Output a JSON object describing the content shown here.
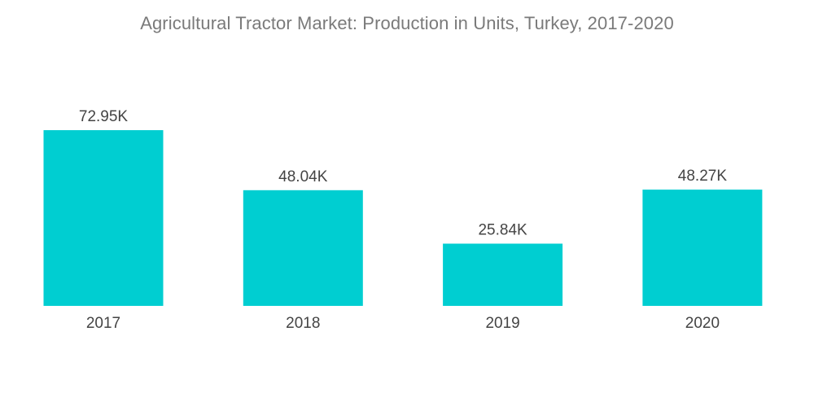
{
  "chart_data": {
    "type": "bar",
    "title": "Agricultural Tractor Market: Production in Units, Turkey, 2017-2020",
    "categories": [
      "2017",
      "2018",
      "2019",
      "2020"
    ],
    "values": [
      72.95,
      48.04,
      25.84,
      48.27
    ],
    "value_labels": [
      "72.95K",
      "48.04K",
      "25.84K",
      "48.27K"
    ],
    "ylim": [
      0,
      72.95
    ],
    "grid": false,
    "legend": "none",
    "bar_color": "#00CED1"
  }
}
